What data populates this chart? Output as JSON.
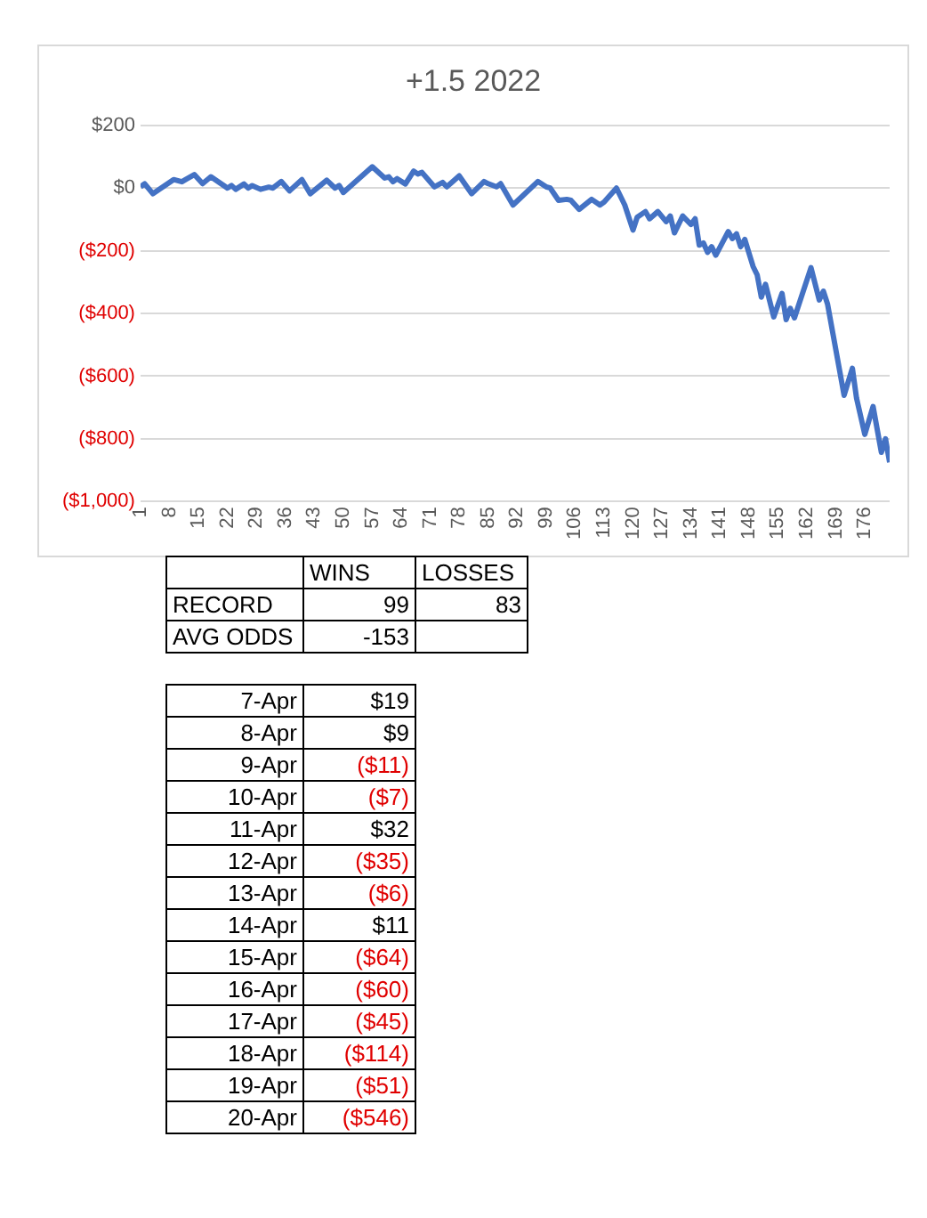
{
  "chart_data": {
    "type": "line",
    "title": "+1.5 2022",
    "x": [
      1,
      2,
      4,
      9,
      11,
      12,
      14,
      16,
      18,
      22,
      23,
      24,
      26,
      27,
      28,
      30,
      32,
      33,
      35,
      37,
      40,
      42,
      46,
      48,
      49,
      50,
      57,
      60,
      61,
      62,
      63,
      65,
      67,
      68,
      69,
      72,
      74,
      75,
      78,
      81,
      84,
      85,
      87,
      88,
      91,
      97,
      99,
      100,
      102,
      104,
      105,
      107,
      110,
      112,
      113,
      116,
      118,
      120,
      121,
      123,
      124,
      126,
      128,
      129,
      130,
      132,
      134,
      135,
      136,
      137,
      138,
      139,
      140,
      143,
      144,
      145,
      146,
      147,
      149,
      150,
      151,
      152,
      154,
      156,
      157,
      158,
      159,
      163,
      165,
      166,
      167,
      171,
      173,
      174,
      176,
      178,
      180,
      181,
      182
    ],
    "values": [
      4,
      14,
      -18,
      27,
      20,
      28,
      43,
      14,
      36,
      0,
      8,
      -4,
      13,
      0,
      8,
      -4,
      3,
      0,
      21,
      -9,
      27,
      -18,
      25,
      0,
      8,
      -14,
      68,
      32,
      36,
      20,
      30,
      13,
      54,
      45,
      50,
      4,
      18,
      4,
      39,
      -18,
      21,
      14,
      4,
      14,
      -54,
      21,
      4,
      0,
      -39,
      -36,
      -39,
      -68,
      -36,
      -54,
      -45,
      0,
      -54,
      -134,
      -93,
      -75,
      -98,
      -75,
      -107,
      -89,
      -143,
      -89,
      -116,
      -98,
      -182,
      -175,
      -205,
      -187,
      -214,
      -139,
      -161,
      -146,
      -187,
      -164,
      -250,
      -277,
      -348,
      -307,
      -411,
      -336,
      -420,
      -384,
      -414,
      -254,
      -357,
      -329,
      -370,
      -661,
      -575,
      -670,
      -786,
      -697,
      -843,
      -800,
      -875
    ],
    "color": "#4472c4",
    "xlim": [
      1,
      182
    ],
    "xticks": [
      1,
      8,
      15,
      22,
      29,
      36,
      43,
      50,
      57,
      64,
      71,
      78,
      85,
      92,
      99,
      106,
      113,
      120,
      127,
      134,
      141,
      148,
      155,
      162,
      169,
      176
    ],
    "ylim": [
      -1000,
      200
    ],
    "yticks": [
      {
        "value": 200,
        "label": "$200"
      },
      {
        "value": 0,
        "label": "$0"
      },
      {
        "value": -200,
        "label": "($200)"
      },
      {
        "value": -400,
        "label": "($400)"
      },
      {
        "value": -600,
        "label": "($600)"
      },
      {
        "value": -800,
        "label": "($800)"
      },
      {
        "value": -1000,
        "label": "($1,000)"
      }
    ],
    "grid": "y",
    "legend": false,
    "annotations": [
      "WINS",
      "LOSSES",
      "RECORD",
      "99",
      "83",
      "AVG ODDS",
      "-153",
      "7-Apr",
      "$19",
      "8-Apr",
      "$9",
      "9-Apr",
      "($11)",
      "10-Apr",
      "($7)",
      "11-Apr",
      "$32",
      "12-Apr",
      "($35)",
      "13-Apr",
      "($6)",
      "14-Apr",
      "$11",
      "15-Apr",
      "($64)",
      "16-Apr",
      "($60)",
      "17-Apr",
      "($45)",
      "18-Apr",
      "($114)",
      "19-Apr",
      "($51)",
      "20-Apr",
      "($546)"
    ]
  }
}
